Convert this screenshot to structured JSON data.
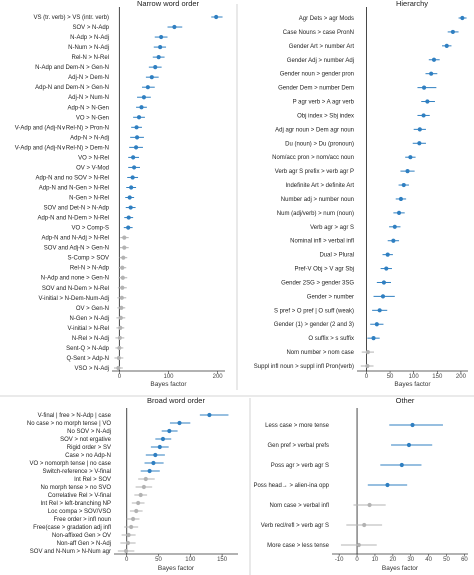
{
  "chart_data": [
    {
      "type": "dot-interval",
      "title": "Narrow word order",
      "xlabel": "Bayes factor",
      "xlim": [
        -15,
        215
      ],
      "xticks": [
        0,
        100,
        200
      ],
      "reference_x": 0,
      "rows": [
        {
          "label": "VS (tr. verb) > VS (intr. verb)",
          "value": 197,
          "lo": 187,
          "hi": 210,
          "sig": true
        },
        {
          "label": "SOV > N-Adp",
          "value": 112,
          "lo": 98,
          "hi": 128,
          "sig": true
        },
        {
          "label": "N-Adp > N-Adj",
          "value": 85,
          "lo": 72,
          "hi": 98,
          "sig": true
        },
        {
          "label": "N-Num > N-Adj",
          "value": 83,
          "lo": 70,
          "hi": 95,
          "sig": true
        },
        {
          "label": "Rel-N > N-Rel",
          "value": 80,
          "lo": 68,
          "hi": 92,
          "sig": true
        },
        {
          "label": "N-Adp and Dem-N > Gen-N",
          "value": 73,
          "lo": 60,
          "hi": 86,
          "sig": true
        },
        {
          "label": "Adj-N > Dem-N",
          "value": 66,
          "lo": 54,
          "hi": 80,
          "sig": true
        },
        {
          "label": "Adp-N and Dem-N > Gen-N",
          "value": 58,
          "lo": 46,
          "hi": 72,
          "sig": true
        },
        {
          "label": "Adj-N > Num-N",
          "value": 50,
          "lo": 36,
          "hi": 64,
          "sig": true
        },
        {
          "label": "Adp-N > N-Gen",
          "value": 45,
          "lo": 34,
          "hi": 56,
          "sig": true
        },
        {
          "label": "VO > N-Gen",
          "value": 40,
          "lo": 28,
          "hi": 52,
          "sig": true
        },
        {
          "label": "V-Adp and (Adj-N∨Rel-N) > Pron-N",
          "value": 35,
          "lo": 24,
          "hi": 46,
          "sig": true
        },
        {
          "label": "Adp-N > N-Adj",
          "value": 36,
          "lo": 22,
          "hi": 50,
          "sig": true
        },
        {
          "label": "V-Adp and (Adj-N∨Rel-N) > Dem-N",
          "value": 34,
          "lo": 20,
          "hi": 48,
          "sig": true
        },
        {
          "label": "VO > N-Rel",
          "value": 28,
          "lo": 18,
          "hi": 40,
          "sig": true
        },
        {
          "label": "OV > V-Mod",
          "value": 30,
          "lo": 18,
          "hi": 42,
          "sig": true
        },
        {
          "label": "Adp-N and no SOV > N-Rel",
          "value": 27,
          "lo": 16,
          "hi": 38,
          "sig": true
        },
        {
          "label": "Adp-N and N-Gen > N-Rel",
          "value": 24,
          "lo": 14,
          "hi": 34,
          "sig": true
        },
        {
          "label": "N-Gen > N-Rel",
          "value": 21,
          "lo": 12,
          "hi": 30,
          "sig": true
        },
        {
          "label": "SOV and Det-N > N-Adp",
          "value": 23,
          "lo": 13,
          "hi": 33,
          "sig": true
        },
        {
          "label": "Adp-N and N-Dem > N-Rel",
          "value": 19,
          "lo": 10,
          "hi": 28,
          "sig": true
        },
        {
          "label": "VO > Comp-S",
          "value": 18,
          "lo": 9,
          "hi": 27,
          "sig": true
        },
        {
          "label": "Adp-N and N-Adj > N-Rel",
          "value": 10,
          "lo": 2,
          "hi": 19,
          "sig": false
        },
        {
          "label": "SOV and Adj-N > Gen-N",
          "value": 10,
          "lo": 1,
          "hi": 19,
          "sig": false
        },
        {
          "label": "S-Comp > SOV",
          "value": 8,
          "lo": 0,
          "hi": 16,
          "sig": false
        },
        {
          "label": "Rel-N > N-Adp",
          "value": 6,
          "lo": -2,
          "hi": 14,
          "sig": false
        },
        {
          "label": "N-Adp and none > Gen-N",
          "value": 7,
          "lo": -2,
          "hi": 16,
          "sig": false
        },
        {
          "label": "SOV and N-Dem > N-Rel",
          "value": 6,
          "lo": -3,
          "hi": 15,
          "sig": false
        },
        {
          "label": "V-initial > N-Dem-Num-Adj",
          "value": 5,
          "lo": -4,
          "hi": 14,
          "sig": false
        },
        {
          "label": "OV > Gen-N",
          "value": 4,
          "lo": -4,
          "hi": 12,
          "sig": false
        },
        {
          "label": "N-Gen > N-Adj",
          "value": 3,
          "lo": -6,
          "hi": 12,
          "sig": false
        },
        {
          "label": "V-initial > N-Rel",
          "value": 2,
          "lo": -6,
          "hi": 10,
          "sig": false
        },
        {
          "label": "N-Rel > N-Adj",
          "value": 1,
          "lo": -8,
          "hi": 10,
          "sig": false
        },
        {
          "label": "Sent-Q > N-Adp",
          "value": 0,
          "lo": -8,
          "hi": 8,
          "sig": false
        },
        {
          "label": "Q-Sent > Adp-N",
          "value": -1,
          "lo": -10,
          "hi": 8,
          "sig": false
        },
        {
          "label": "VSO > N-Adj",
          "value": -2,
          "lo": -11,
          "hi": 7,
          "sig": false
        }
      ]
    },
    {
      "type": "dot-interval",
      "title": "Hierarchy",
      "xlabel": "Bayes factor",
      "xlim": [
        -20,
        215
      ],
      "xticks": [
        0,
        50,
        100,
        150,
        200
      ],
      "reference_x": 0,
      "rows": [
        {
          "label": "Agr Dets > agr Mods",
          "value": 203,
          "lo": 195,
          "hi": 212,
          "sig": true
        },
        {
          "label": "Case Nouns > case PronN",
          "value": 183,
          "lo": 172,
          "hi": 195,
          "sig": true
        },
        {
          "label": "Gender Art > number Art",
          "value": 170,
          "lo": 160,
          "hi": 180,
          "sig": true
        },
        {
          "label": "Gender Adj > number Adj",
          "value": 143,
          "lo": 132,
          "hi": 155,
          "sig": true
        },
        {
          "label": "Gender noun > gender pron",
          "value": 137,
          "lo": 125,
          "hi": 150,
          "sig": true
        },
        {
          "label": "Gender Dem > number Dem",
          "value": 122,
          "lo": 108,
          "hi": 148,
          "sig": true
        },
        {
          "label": "P agr verb > A agr verb",
          "value": 129,
          "lo": 116,
          "hi": 145,
          "sig": true
        },
        {
          "label": "Obj index > Sbj index",
          "value": 121,
          "lo": 108,
          "hi": 134,
          "sig": true
        },
        {
          "label": "Adj agr noun > Dem agr noun",
          "value": 113,
          "lo": 100,
          "hi": 126,
          "sig": true
        },
        {
          "label": "Du (noun) > Du (pronoun)",
          "value": 112,
          "lo": 98,
          "hi": 126,
          "sig": true
        },
        {
          "label": "Nom/acc pron > nom/acc noun",
          "value": 93,
          "lo": 82,
          "hi": 104,
          "sig": true
        },
        {
          "label": "Verb agr S prefix > verb agr P",
          "value": 87,
          "lo": 72,
          "hi": 102,
          "sig": true
        },
        {
          "label": "Indefinite Art > definite Art",
          "value": 79,
          "lo": 68,
          "hi": 90,
          "sig": true
        },
        {
          "label": "Number adj > number noun",
          "value": 73,
          "lo": 62,
          "hi": 84,
          "sig": true
        },
        {
          "label": "Num (adj/verb) > num (noun)",
          "value": 69,
          "lo": 57,
          "hi": 81,
          "sig": true
        },
        {
          "label": "Verb agr > agr S",
          "value": 60,
          "lo": 48,
          "hi": 72,
          "sig": true
        },
        {
          "label": "Nominal infl > verbal infl",
          "value": 57,
          "lo": 45,
          "hi": 69,
          "sig": true
        },
        {
          "label": "Dual > Plural",
          "value": 45,
          "lo": 34,
          "hi": 56,
          "sig": true
        },
        {
          "label": "Pref-V Obj > V agr Sbj",
          "value": 42,
          "lo": 30,
          "hi": 54,
          "sig": true
        },
        {
          "label": "Gender 2SG > gender 3SG",
          "value": 37,
          "lo": 22,
          "hi": 52,
          "sig": true
        },
        {
          "label": "Gender > number",
          "value": 35,
          "lo": 15,
          "hi": 60,
          "sig": true
        },
        {
          "label": "S pref > O pref | O suff (weak)",
          "value": 28,
          "lo": 12,
          "hi": 44,
          "sig": true
        },
        {
          "label": "Gender (1) > gender (2 and 3)",
          "value": 22,
          "lo": 8,
          "hi": 36,
          "sig": true
        },
        {
          "label": "O suffix > s suffix",
          "value": 15,
          "lo": 2,
          "hi": 28,
          "sig": true
        },
        {
          "label": "Nom number > nom case",
          "value": 3,
          "lo": -10,
          "hi": 16,
          "sig": false
        },
        {
          "label": "Suppl infl noun > suppl infl Pron(verb)",
          "value": 2,
          "lo": -12,
          "hi": 15,
          "sig": false
        }
      ]
    },
    {
      "type": "dot-interval",
      "title": "Broad word order",
      "xlabel": "Bayes factor",
      "xlim": [
        -20,
        175
      ],
      "xticks": [
        0,
        50,
        100,
        150
      ],
      "reference_x": 0,
      "rows": [
        {
          "label": "V-final | free > N-Adp | case",
          "value": 130,
          "lo": 115,
          "hi": 160,
          "sig": true
        },
        {
          "label": "No case > no morph tense | VO",
          "value": 83,
          "lo": 68,
          "hi": 100,
          "sig": true
        },
        {
          "label": "No SOV > N-Adj",
          "value": 67,
          "lo": 55,
          "hi": 80,
          "sig": true
        },
        {
          "label": "SOV > not ergative",
          "value": 57,
          "lo": 45,
          "hi": 70,
          "sig": true
        },
        {
          "label": "Rigid order > SV",
          "value": 52,
          "lo": 38,
          "hi": 66,
          "sig": true
        },
        {
          "label": "Case > no Adp-N",
          "value": 45,
          "lo": 30,
          "hi": 60,
          "sig": true
        },
        {
          "label": "VO > nomorph tense | no case",
          "value": 42,
          "lo": 28,
          "hi": 58,
          "sig": true
        },
        {
          "label": "Switch-reference > V-final",
          "value": 36,
          "lo": 22,
          "hi": 52,
          "sig": true
        },
        {
          "label": "Int Rel > SOV",
          "value": 30,
          "lo": 18,
          "hi": 44,
          "sig": false
        },
        {
          "label": "No morph tense > no SVO",
          "value": 27,
          "lo": 14,
          "hi": 40,
          "sig": false
        },
        {
          "label": "Correlative Rel > V-final",
          "value": 22,
          "lo": 12,
          "hi": 32,
          "sig": false
        },
        {
          "label": "Int Rel > left-branching NP",
          "value": 18,
          "lo": 8,
          "hi": 28,
          "sig": false
        },
        {
          "label": "Loc compa > SOV/VSO",
          "value": 15,
          "lo": 5,
          "hi": 25,
          "sig": false
        },
        {
          "label": "Free order > infl noun",
          "value": 10,
          "lo": 0,
          "hi": 20,
          "sig": false
        },
        {
          "label": "Free(case > gradation adj infl",
          "value": 7,
          "lo": -4,
          "hi": 18,
          "sig": false
        },
        {
          "label": "Non-affixed Gen > OV",
          "value": 3,
          "lo": -8,
          "hi": 14,
          "sig": false
        },
        {
          "label": "Non-aff Gen > N-Adj",
          "value": 2,
          "lo": -10,
          "hi": 14,
          "sig": false
        },
        {
          "label": "SOV and N-Num > N-Num agr",
          "value": -1,
          "lo": -14,
          "hi": 12,
          "sig": false
        }
      ]
    },
    {
      "type": "dot-interval",
      "title": "Other",
      "xlabel": "Bayes factor",
      "xlim": [
        -14,
        62
      ],
      "xticks": [
        -10,
        0,
        10,
        20,
        30,
        40,
        50,
        60
      ],
      "reference_x": 0,
      "rows": [
        {
          "label": "Less case > more tense",
          "value": 31,
          "lo": 18,
          "hi": 48,
          "sig": true
        },
        {
          "label": "Gen pref > verbal prefs",
          "value": 29,
          "lo": 19,
          "hi": 42,
          "sig": true
        },
        {
          "label": "Poss agr > verb agr S",
          "value": 25,
          "lo": 13,
          "hi": 36,
          "sig": true
        },
        {
          "label": "Poss head→ > alien-ina opp",
          "value": 17,
          "lo": 6,
          "hi": 28,
          "sig": true
        },
        {
          "label": "Nom case > verbal infl",
          "value": 7,
          "lo": -2,
          "hi": 16,
          "sig": false
        },
        {
          "label": "Verb recl/refl > verb agr S",
          "value": 4,
          "lo": -6,
          "hi": 14,
          "sig": false
        },
        {
          "label": "More case > less tense",
          "value": 1,
          "lo": -9,
          "hi": 11,
          "sig": false
        }
      ]
    }
  ],
  "colors": {
    "significant": "#2f7fc1",
    "nonsignificant": "#b3b3b3",
    "axis": "#333333",
    "divider": "#c8c8c8"
  }
}
